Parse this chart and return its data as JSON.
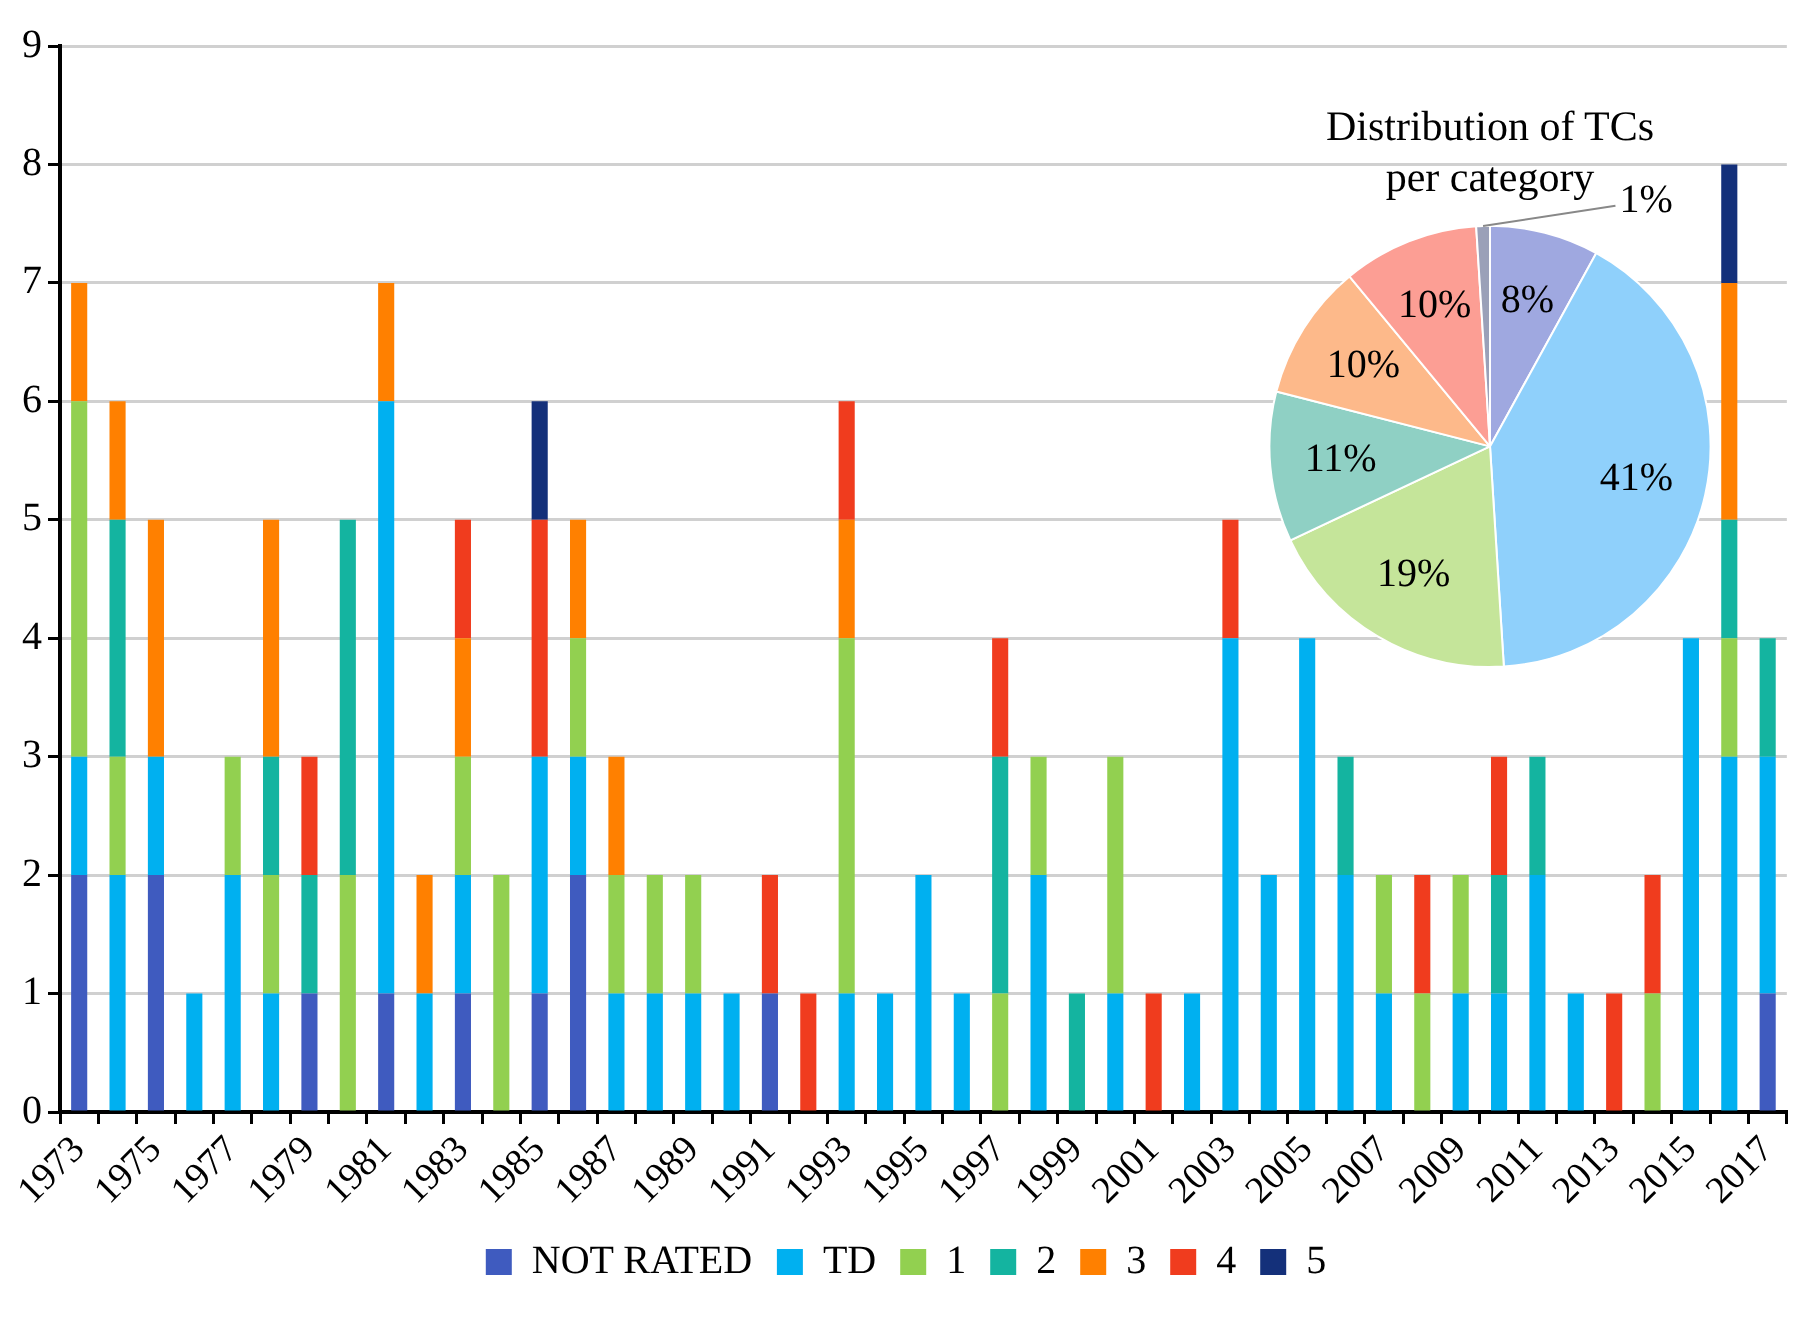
{
  "chart_data": [
    {
      "type": "bar",
      "stacked": true,
      "grid": "y",
      "legend": "bottom",
      "ylim": [
        0,
        9
      ],
      "yticks": [
        0,
        1,
        2,
        3,
        4,
        5,
        6,
        7,
        8,
        9
      ],
      "categories": [
        "1973",
        null,
        "1975",
        null,
        "1977",
        null,
        "1979",
        null,
        "1981",
        null,
        "1983",
        null,
        "1985",
        null,
        "1987",
        null,
        "1989",
        null,
        "1991",
        null,
        "1993",
        null,
        "1995",
        null,
        "1997",
        null,
        "1999",
        null,
        "2001",
        null,
        "2003",
        null,
        "2005",
        null,
        "2007",
        null,
        "2009",
        null,
        "2011",
        null,
        "2013",
        null,
        "2015",
        null,
        "2017"
      ],
      "series": [
        {
          "name": "NOT RATED",
          "color": "#3f5bbf",
          "values": [
            2,
            0,
            2,
            0,
            0,
            0,
            1,
            0,
            1,
            0,
            1,
            0,
            1,
            2,
            0,
            0,
            0,
            0,
            1,
            0,
            0,
            0,
            0,
            0,
            0,
            0,
            0,
            0,
            0,
            0,
            0,
            0,
            0,
            0,
            0,
            0,
            0,
            0,
            0,
            0,
            0,
            0,
            0,
            0,
            1
          ]
        },
        {
          "name": "TD",
          "color": "#00b0f0",
          "values": [
            1,
            2,
            1,
            1,
            2,
            1,
            0,
            0,
            5,
            1,
            1,
            0,
            2,
            1,
            1,
            1,
            1,
            1,
            0,
            0,
            1,
            1,
            2,
            1,
            0,
            2,
            0,
            1,
            0,
            1,
            4,
            2,
            4,
            2,
            1,
            0,
            1,
            1,
            2,
            1,
            0,
            0,
            4,
            3,
            2
          ]
        },
        {
          "name": "1",
          "color": "#92d050",
          "values": [
            3,
            1,
            0,
            0,
            1,
            1,
            0,
            2,
            0,
            0,
            1,
            2,
            0,
            1,
            1,
            1,
            1,
            0,
            0,
            0,
            3,
            0,
            0,
            0,
            1,
            1,
            0,
            2,
            0,
            0,
            0,
            0,
            0,
            0,
            1,
            1,
            1,
            0,
            0,
            0,
            0,
            1,
            0,
            1,
            0
          ]
        },
        {
          "name": "2",
          "color": "#14b4a0",
          "values": [
            0,
            2,
            0,
            0,
            0,
            1,
            1,
            3,
            0,
            0,
            0,
            0,
            0,
            0,
            0,
            0,
            0,
            0,
            0,
            0,
            0,
            0,
            0,
            0,
            2,
            0,
            1,
            0,
            0,
            0,
            0,
            0,
            0,
            1,
            0,
            0,
            0,
            1,
            1,
            0,
            0,
            0,
            0,
            1,
            1
          ]
        },
        {
          "name": "3",
          "color": "#ff8000",
          "values": [
            1,
            1,
            2,
            0,
            0,
            2,
            0,
            0,
            1,
            1,
            1,
            0,
            0,
            1,
            1,
            0,
            0,
            0,
            0,
            0,
            1,
            0,
            0,
            0,
            0,
            0,
            0,
            0,
            0,
            0,
            0,
            0,
            0,
            0,
            0,
            0,
            0,
            0,
            0,
            0,
            0,
            0,
            0,
            2,
            0
          ]
        },
        {
          "name": "4",
          "color": "#f03c1e",
          "values": [
            0,
            0,
            0,
            0,
            0,
            0,
            1,
            0,
            0,
            0,
            1,
            0,
            2,
            0,
            0,
            0,
            0,
            0,
            1,
            1,
            1,
            0,
            0,
            0,
            1,
            0,
            0,
            0,
            1,
            0,
            1,
            0,
            0,
            0,
            0,
            1,
            0,
            1,
            0,
            0,
            1,
            1,
            0,
            0,
            0
          ]
        },
        {
          "name": "5",
          "color": "#14307a",
          "values": [
            0,
            0,
            0,
            0,
            0,
            0,
            0,
            0,
            0,
            0,
            0,
            0,
            1,
            0,
            0,
            0,
            0,
            0,
            0,
            0,
            0,
            0,
            0,
            0,
            0,
            0,
            0,
            0,
            0,
            0,
            0,
            0,
            0,
            0,
            0,
            0,
            0,
            0,
            0,
            0,
            0,
            0,
            0,
            1,
            0
          ]
        }
      ]
    },
    {
      "type": "pie",
      "title": "Distribution of TCs per category",
      "values": [
        8,
        41,
        19,
        11,
        10,
        10,
        1
      ],
      "colors": [
        "#9fa8e0",
        "#8fd0fb",
        "#c5e59a",
        "#8fd0c4",
        "#fdb98a",
        "#fc9e94",
        "#9aa0b8"
      ],
      "value_labels": [
        "8%",
        "41%",
        "19%",
        "11%",
        "10%",
        "10%",
        "1%"
      ]
    }
  ]
}
